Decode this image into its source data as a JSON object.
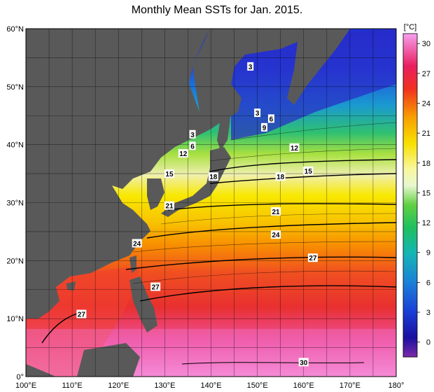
{
  "title": "Monthly Mean SSTs for Jan. 2015.",
  "colors": {
    "land": "#595959",
    "grid": "#000000"
  },
  "map": {
    "lon_range": [
      100,
      180
    ],
    "lat_range": [
      0,
      60
    ],
    "lon_ticks": [
      "100°E",
      "110°E",
      "120°E",
      "130°E",
      "140°E",
      "150°E",
      "160°E",
      "170°E",
      "180°"
    ],
    "lat_ticks": [
      "0°",
      "10°N",
      "20°N",
      "30°N",
      "40°N",
      "50°N",
      "60°N"
    ],
    "lon_tick_values": [
      100,
      110,
      120,
      130,
      140,
      150,
      160,
      170,
      180
    ],
    "lat_tick_values": [
      0,
      10,
      20,
      30,
      40,
      50,
      60
    ]
  },
  "colorbar": {
    "unit": "[°C]",
    "labels": [
      "30",
      "27",
      "24",
      "21",
      "18",
      "15",
      "12",
      "9",
      "6",
      "3",
      "0"
    ],
    "values": [
      30,
      27,
      24,
      21,
      18,
      15,
      12,
      9,
      6,
      3,
      0
    ],
    "range": [
      -1.5,
      31
    ]
  },
  "contour_labels": [
    {
      "text": "3",
      "lon": 148.5,
      "lat": 53.5
    },
    {
      "text": "3",
      "lon": 150,
      "lat": 45.5
    },
    {
      "text": "3",
      "lon": 136,
      "lat": 41.8
    },
    {
      "text": "6",
      "lon": 153,
      "lat": 44.5
    },
    {
      "text": "6",
      "lon": 136,
      "lat": 39.8
    },
    {
      "text": "9",
      "lon": 151.5,
      "lat": 43
    },
    {
      "text": "12",
      "lon": 134,
      "lat": 38.5
    },
    {
      "text": "12",
      "lon": 158,
      "lat": 39.5
    },
    {
      "text": "15",
      "lon": 131,
      "lat": 35
    },
    {
      "text": "15",
      "lon": 161,
      "lat": 35.5
    },
    {
      "text": "18",
      "lon": 140.5,
      "lat": 34.5
    },
    {
      "text": "18",
      "lon": 155,
      "lat": 34.5
    },
    {
      "text": "21",
      "lon": 131,
      "lat": 29.5
    },
    {
      "text": "21",
      "lon": 154,
      "lat": 28.5
    },
    {
      "text": "24",
      "lon": 124,
      "lat": 23
    },
    {
      "text": "24",
      "lon": 154,
      "lat": 24.5
    },
    {
      "text": "27",
      "lon": 128,
      "lat": 15.5
    },
    {
      "text": "27",
      "lon": 162,
      "lat": 20.5
    },
    {
      "text": "27",
      "lon": 112,
      "lat": 10.8
    },
    {
      "text": "30",
      "lon": 160,
      "lat": 2.5
    }
  ]
}
